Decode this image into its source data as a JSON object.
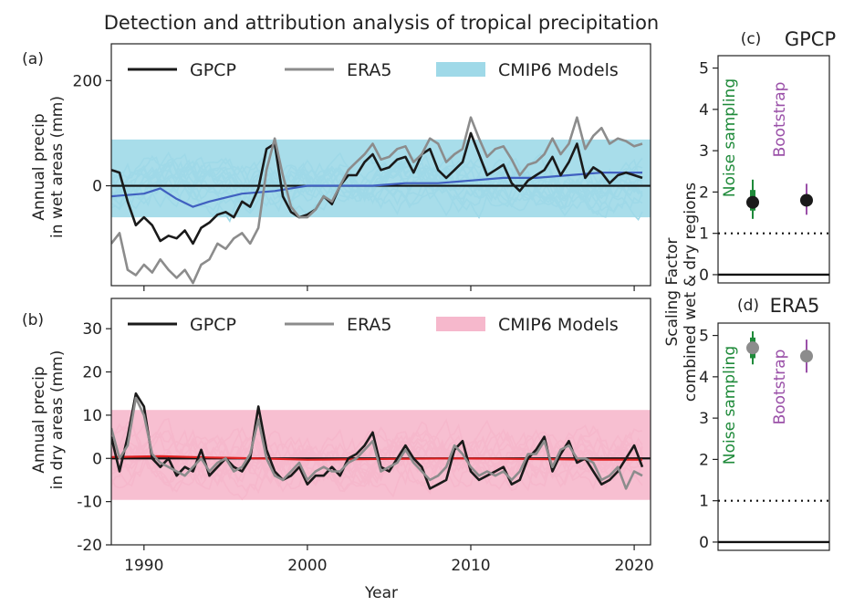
{
  "title": "Detection and attribution analysis of tropical precipitation",
  "colors": {
    "gpcp": "#1a1a1a",
    "era5": "#8c8c8c",
    "wet_models": "#9fd9e8",
    "dry_models": "#f6b8cc",
    "wet_mean": "#4060c0",
    "dry_mean": "#e02020",
    "noise": "#1f8a3a",
    "bootstrap": "#9a50a8"
  },
  "chart_data": [
    {
      "panel": "(a)",
      "type": "line",
      "ylabel": "Annual precip\nin wet areas (mm)",
      "xlim": [
        1988,
        2021
      ],
      "ylim": [
        -190,
        270
      ],
      "yticks": [
        0,
        200
      ],
      "xticks": [
        1990,
        2000,
        2010,
        2020
      ],
      "legend": {
        "placement": "top",
        "entries": [
          "GPCP",
          "ERA5",
          "CMIP6 Models"
        ]
      },
      "ensemble": {
        "name": "CMIP6 Models",
        "lower": -75,
        "upper": 110
      },
      "series": [
        {
          "name": "GPCP",
          "x": [
            1988,
            1988.5,
            1989,
            1989.5,
            1990,
            1990.5,
            1991,
            1991.5,
            1992,
            1992.5,
            1993,
            1993.5,
            1994,
            1994.5,
            1995,
            1995.5,
            1996,
            1996.5,
            1997,
            1997.5,
            1998,
            1998.5,
            1999,
            1999.5,
            2000,
            2000.5,
            2001,
            2001.5,
            2002,
            2002.5,
            2003,
            2003.5,
            2004,
            2004.5,
            2005,
            2005.5,
            2006,
            2006.5,
            2007,
            2007.5,
            2008,
            2008.5,
            2009,
            2009.5,
            2010,
            2010.5,
            2011,
            2011.5,
            2012,
            2012.5,
            2013,
            2013.5,
            2014,
            2014.5,
            2015,
            2015.5,
            2016,
            2016.5,
            2017,
            2017.5,
            2018,
            2018.5,
            2019,
            2019.5,
            2020,
            2020.5
          ],
          "y": [
            30,
            25,
            -30,
            -75,
            -60,
            -75,
            -105,
            -95,
            -100,
            -85,
            -110,
            -80,
            -70,
            -55,
            -50,
            -60,
            -30,
            -40,
            -5,
            70,
            80,
            -20,
            -50,
            -60,
            -55,
            -45,
            -20,
            -35,
            0,
            20,
            20,
            45,
            60,
            30,
            35,
            50,
            55,
            25,
            60,
            70,
            30,
            15,
            30,
            45,
            100,
            60,
            20,
            30,
            40,
            5,
            -10,
            10,
            20,
            30,
            55,
            20,
            45,
            80,
            15,
            35,
            25,
            5,
            20,
            25,
            20,
            15
          ]
        },
        {
          "name": "ERA5",
          "x": [
            1988,
            1988.5,
            1989,
            1989.5,
            1990,
            1990.5,
            1991,
            1991.5,
            1992,
            1992.5,
            1993,
            1993.5,
            1994,
            1994.5,
            1995,
            1995.5,
            1996,
            1996.5,
            1997,
            1997.5,
            1998,
            1998.5,
            1999,
            1999.5,
            2000,
            2000.5,
            2001,
            2001.5,
            2002,
            2002.5,
            2003,
            2003.5,
            2004,
            2004.5,
            2005,
            2005.5,
            2006,
            2006.5,
            2007,
            2007.5,
            2008,
            2008.5,
            2009,
            2009.5,
            2010,
            2010.5,
            2011,
            2011.5,
            2012,
            2012.5,
            2013,
            2013.5,
            2014,
            2014.5,
            2015,
            2015.5,
            2016,
            2016.5,
            2017,
            2017.5,
            2018,
            2018.5,
            2019,
            2019.5,
            2020,
            2020.5
          ],
          "y": [
            -110,
            -90,
            -160,
            -170,
            -150,
            -165,
            -140,
            -160,
            -175,
            -160,
            -185,
            -150,
            -140,
            -110,
            -120,
            -100,
            -90,
            -110,
            -80,
            30,
            90,
            20,
            -40,
            -60,
            -60,
            -45,
            -20,
            -30,
            0,
            30,
            45,
            60,
            80,
            50,
            55,
            70,
            75,
            45,
            60,
            90,
            80,
            45,
            60,
            70,
            130,
            90,
            55,
            70,
            75,
            50,
            20,
            40,
            45,
            60,
            90,
            60,
            80,
            130,
            70,
            95,
            110,
            80,
            90,
            85,
            75,
            80
          ]
        },
        {
          "name": "CMIP6 mean",
          "x": [
            1988,
            1990,
            1991,
            1992,
            1993,
            1994,
            1996,
            1998,
            2000,
            2002,
            2004,
            2006,
            2008,
            2010,
            2012,
            2014,
            2016,
            2018,
            2020,
            2020.5
          ],
          "y": [
            -20,
            -15,
            -5,
            -25,
            -40,
            -30,
            -15,
            -10,
            0,
            0,
            0,
            5,
            5,
            10,
            15,
            15,
            20,
            25,
            25,
            25
          ]
        }
      ]
    },
    {
      "panel": "(b)",
      "type": "line",
      "xlabel": "Year",
      "ylabel": "Annual precip\nin dry areas (mm)",
      "xlim": [
        1988,
        2021
      ],
      "ylim": [
        -20,
        37
      ],
      "yticks": [
        -20,
        -10,
        0,
        10,
        20,
        30
      ],
      "xticks": [
        1990,
        2000,
        2010,
        2020
      ],
      "legend": {
        "placement": "top",
        "entries": [
          "GPCP",
          "ERA5",
          "CMIP6 Models"
        ]
      },
      "ensemble": {
        "name": "CMIP6 Models",
        "lower": -12,
        "upper": 14
      },
      "series": [
        {
          "name": "GPCP",
          "x": [
            1988,
            1988.5,
            1989,
            1989.5,
            1990,
            1990.5,
            1991,
            1991.5,
            1992,
            1992.5,
            1993,
            1993.5,
            1994,
            1994.5,
            1995,
            1995.5,
            1996,
            1996.5,
            1997,
            1997.5,
            1998,
            1998.5,
            1999,
            1999.5,
            2000,
            2000.5,
            2001,
            2001.5,
            2002,
            2002.5,
            2003,
            2003.5,
            2004,
            2004.5,
            2005,
            2005.5,
            2006,
            2006.5,
            2007,
            2007.5,
            2008,
            2008.5,
            2009,
            2009.5,
            2010,
            2010.5,
            2011,
            2011.5,
            2012,
            2012.5,
            2013,
            2013.5,
            2014,
            2014.5,
            2015,
            2015.5,
            2016,
            2016.5,
            2017,
            2017.5,
            2018,
            2018.5,
            2019,
            2019.5,
            2020,
            2020.5
          ],
          "y": [
            5,
            -3,
            5,
            15,
            12,
            0,
            -2,
            0,
            -4,
            -2,
            -3,
            2,
            -4,
            -2,
            0,
            -2,
            -3,
            0,
            12,
            2,
            -3,
            -5,
            -4,
            -2,
            -6,
            -4,
            -4,
            -2,
            -4,
            0,
            1,
            3,
            6,
            -2,
            -3,
            0,
            3,
            0,
            -2,
            -7,
            -6,
            -5,
            2,
            4,
            -3,
            -5,
            -4,
            -3,
            -2,
            -6,
            -5,
            0,
            2,
            5,
            -3,
            1,
            4,
            -1,
            0,
            -3,
            -6,
            -5,
            -3,
            0,
            3,
            -2
          ]
        },
        {
          "name": "ERA5",
          "x": [
            1988,
            1988.5,
            1989,
            1989.5,
            1990,
            1990.5,
            1991,
            1991.5,
            1992,
            1992.5,
            1993,
            1993.5,
            1994,
            1994.5,
            1995,
            1995.5,
            1996,
            1996.5,
            1997,
            1997.5,
            1998,
            1998.5,
            1999,
            1999.5,
            2000,
            2000.5,
            2001,
            2001.5,
            2002,
            2002.5,
            2003,
            2003.5,
            2004,
            2004.5,
            2005,
            2005.5,
            2006,
            2006.5,
            2007,
            2007.5,
            2008,
            2008.5,
            2009,
            2009.5,
            2010,
            2010.5,
            2011,
            2011.5,
            2012,
            2012.5,
            2013,
            2013.5,
            2014,
            2014.5,
            2015,
            2015.5,
            2016,
            2016.5,
            2017,
            2017.5,
            2018,
            2018.5,
            2019,
            2019.5,
            2020,
            2020.5
          ],
          "y": [
            7,
            0,
            3,
            14,
            10,
            1,
            -1,
            -2,
            -3,
            -4,
            -2,
            0,
            -3,
            -1,
            0,
            -3,
            -2,
            1,
            9,
            0,
            -4,
            -5,
            -3,
            -1,
            -5,
            -3,
            -2,
            -3,
            -3,
            -1,
            0,
            2,
            4,
            -3,
            -2,
            -1,
            2,
            -1,
            -3,
            -5,
            -4,
            -2,
            3,
            1,
            -2,
            -4,
            -3,
            -4,
            -3,
            -5,
            -3,
            1,
            1,
            4,
            -2,
            2,
            3,
            0,
            0,
            -1,
            -5,
            -4,
            -2,
            -7,
            -3,
            -4
          ]
        },
        {
          "name": "CMIP6 mean",
          "x": [
            1988,
            1991,
            1994,
            1997,
            2000,
            2003,
            2006,
            2009,
            2012,
            2015,
            2018,
            2020.5
          ],
          "y": [
            0.3,
            0.5,
            0.2,
            0.0,
            -0.3,
            -0.2,
            -0.1,
            0.0,
            -0.1,
            -0.2,
            -0.3,
            -0.3
          ]
        }
      ]
    },
    {
      "panel": "(c)",
      "type": "scatter",
      "title": "GPCP",
      "ylabel": "Scaling Factor\ncombined wet & dry regions",
      "ylim": [
        -0.2,
        5.3
      ],
      "yticks": [
        0,
        1,
        2,
        3,
        4,
        5
      ],
      "reference_line": 1,
      "points": [
        {
          "label": "Noise sampling",
          "value": 1.75,
          "low": 1.35,
          "high": 2.3,
          "inner_low": 1.55,
          "inner_high": 2.05,
          "point_color": "#1a1a1a"
        },
        {
          "label": "Bootstrap",
          "value": 1.8,
          "low": 1.45,
          "high": 2.2,
          "point_color": "#1a1a1a"
        }
      ]
    },
    {
      "panel": "(d)",
      "type": "scatter",
      "title": "ERA5",
      "ylim": [
        -0.2,
        5.3
      ],
      "yticks": [
        0,
        1,
        2,
        3,
        4,
        5
      ],
      "reference_line": 1,
      "points": [
        {
          "label": "Noise sampling",
          "value": 4.7,
          "low": 4.3,
          "high": 5.1,
          "inner_low": 4.45,
          "inner_high": 4.95,
          "point_color": "#8c8c8c"
        },
        {
          "label": "Bootstrap",
          "value": 4.5,
          "low": 4.1,
          "high": 4.9,
          "point_color": "#8c8c8c"
        }
      ]
    }
  ]
}
